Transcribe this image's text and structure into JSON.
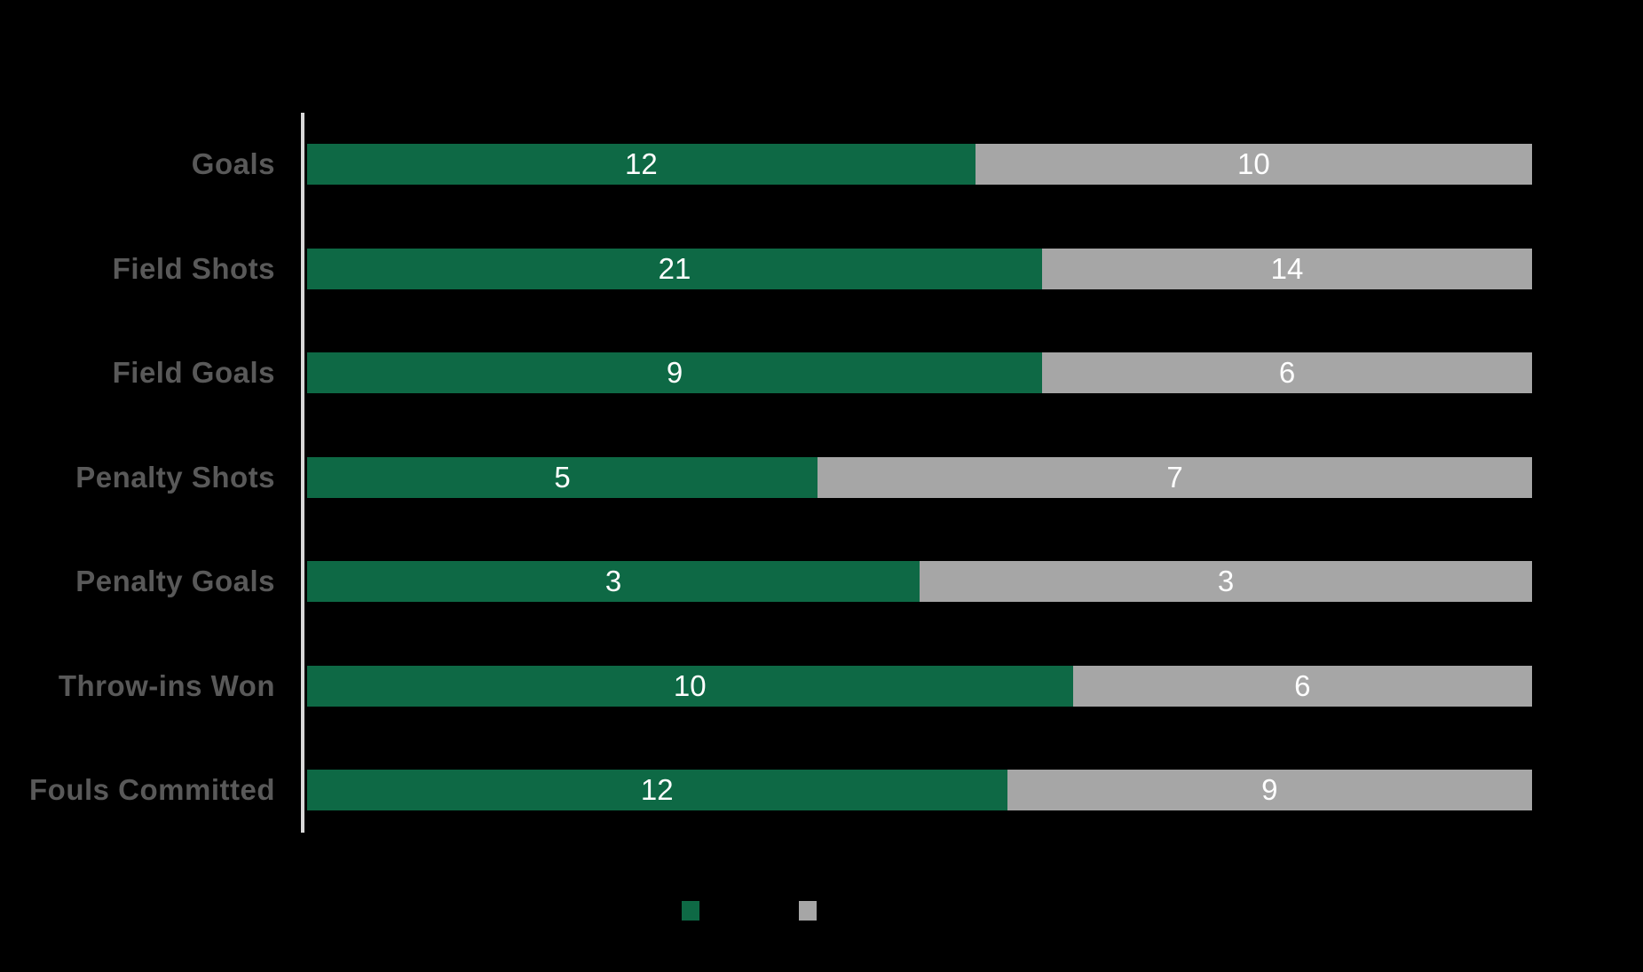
{
  "chart_data": {
    "type": "bar",
    "orientation": "horizontal",
    "stacking": "100%",
    "title": "",
    "categories": [
      "Goals",
      "Field Shots",
      "Field Goals",
      "Penalty Shots",
      "Penalty Goals",
      "Throw-ins Won",
      "Fouls Committed"
    ],
    "series": [
      {
        "name": "green",
        "color": "#0e6945",
        "values": [
          12,
          21,
          9,
          5,
          3,
          10,
          12
        ]
      },
      {
        "name": "gray",
        "color": "#a6a6a6",
        "values": [
          10,
          14,
          6,
          7,
          3,
          6,
          9
        ]
      }
    ],
    "value_labels": {
      "color": "#ffffff",
      "position": "center-of-segment"
    },
    "category_label_color": "#595959",
    "axis_line_color": "#d9d9d9",
    "background_color": "#000000",
    "grid": false,
    "legend": {
      "position": "bottom-center",
      "items": [
        {
          "color": "#0e6945",
          "label": ""
        },
        {
          "color": "#a6a6a6",
          "label": ""
        }
      ]
    }
  }
}
